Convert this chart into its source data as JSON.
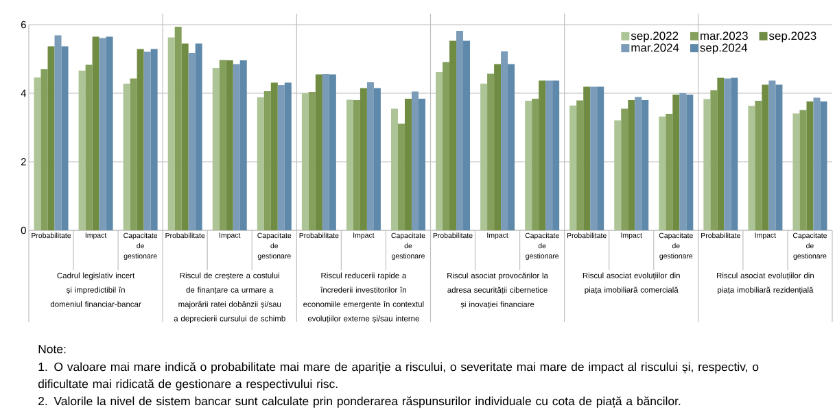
{
  "chart_data": {
    "type": "bar",
    "categories": [
      "Probabilitate",
      "Impact",
      "Capacitate de gestionare",
      "Probabilitate",
      "Impact",
      "Capacitate de gestionare",
      "Probabilitate",
      "Impact",
      "Capacitate de gestionare",
      "Probabilitate",
      "Impact",
      "Capacitate de gestionare",
      "Probabilitate",
      "Impact",
      "Capacitate de gestionare",
      "Probabilitate",
      "Impact",
      "Capacitate de gestionare"
    ],
    "series": [
      {
        "name": "sep.2022",
        "color": "#adc596",
        "values": [
          4.46,
          4.66,
          4.28,
          5.63,
          4.74,
          3.88,
          4.0,
          3.81,
          3.55,
          4.62,
          4.28,
          3.78,
          3.64,
          3.21,
          3.32,
          3.83,
          3.63,
          3.41
        ]
      },
      {
        "name": "mar.2023",
        "color": "#84a05c",
        "values": [
          4.7,
          4.83,
          4.43,
          5.94,
          4.97,
          4.06,
          4.04,
          3.8,
          3.11,
          4.91,
          4.57,
          3.84,
          3.79,
          3.55,
          3.4,
          4.09,
          3.78,
          3.51
        ]
      },
      {
        "name": "sep.2023",
        "color": "#708c42",
        "values": [
          5.37,
          5.65,
          5.29,
          5.45,
          4.96,
          4.31,
          4.55,
          4.15,
          3.84,
          5.53,
          4.85,
          4.37,
          4.19,
          3.8,
          3.96,
          4.45,
          4.25,
          3.76
        ]
      },
      {
        "name": "mar.2024",
        "color": "#7a9cb8",
        "values": [
          5.69,
          5.61,
          5.21,
          5.18,
          4.85,
          4.24,
          4.56,
          4.32,
          4.05,
          5.82,
          5.22,
          4.37,
          4.19,
          3.89,
          4.0,
          4.43,
          4.37,
          3.87
        ]
      },
      {
        "name": "sep.2024",
        "color": "#5e89aa",
        "values": [
          5.37,
          5.65,
          5.29,
          5.45,
          4.96,
          4.31,
          4.55,
          4.15,
          3.84,
          5.53,
          4.85,
          4.37,
          4.19,
          3.8,
          3.96,
          4.45,
          4.25,
          3.76
        ]
      }
    ],
    "ylim": [
      0,
      6
    ],
    "yticks": [
      0,
      2,
      4,
      6
    ],
    "grid": "y",
    "legend": "top right",
    "annotations": [
      "Cadrul legislativ incert și impredictibil în domeniul financiar-bancar",
      "Riscul de creștere a costului de finanțare ca urmare a majorării ratei dobânzii și/sau a deprecierii cursului de schimb",
      "Riscul reducerii rapide a încrederii investitorilor în economiile emergente în contextul evoluțiilor externe și/sau interne",
      "Riscul asociat provocărilor la adresa securității cibernetice și inovației financiare",
      "Riscul asociat evoluțiilor din piața imobiliară comercială",
      "Riscul asociat evoluțiilor din piața imobiliară rezidențială",
      "Note:",
      "1. O valoare mai mare indică o probabilitate mai mare de apariție a riscului, o severitate mai mare de impact al riscului și, respectiv, o dificultate mai ridicată de gestionare a respectivului risc.",
      "2. Valorile la nivel de sistem bancar sunt calculate prin ponderarea răspunsurilor individuale cu cota de piață a băncilor."
    ]
  }
}
